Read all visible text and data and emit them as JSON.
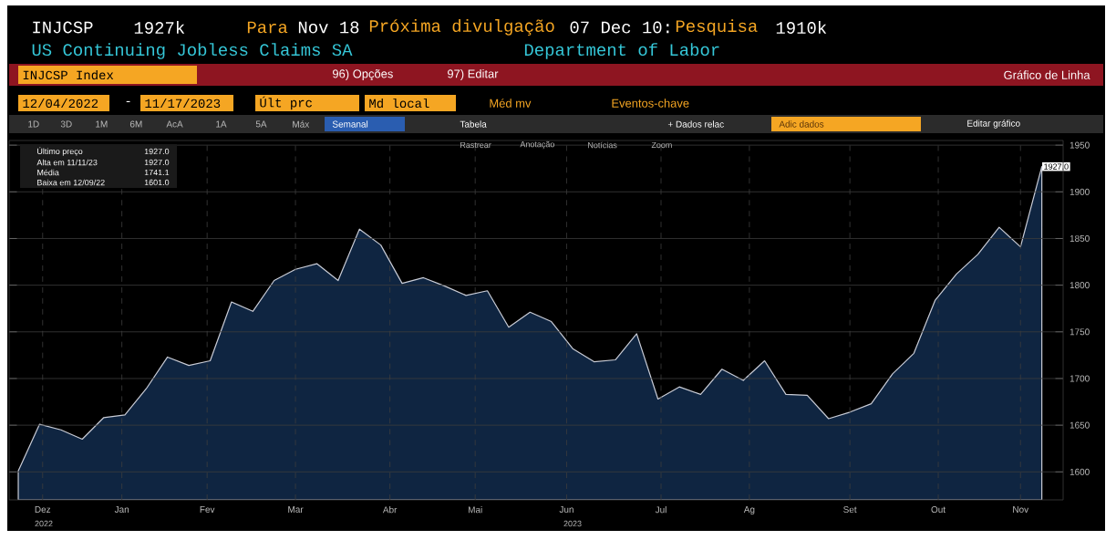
{
  "chart_data": {
    "type": "area",
    "title": "US Continuing Jobless Claims SA",
    "subtitle": "Department of Labor",
    "x": [
      "2022-12-10",
      "2022-12-17",
      "2022-12-24",
      "2022-12-31",
      "2023-01-07",
      "2023-01-14",
      "2023-01-21",
      "2023-01-28",
      "2023-02-04",
      "2023-02-11",
      "2023-02-18",
      "2023-02-25",
      "2023-03-04",
      "2023-03-11",
      "2023-03-18",
      "2023-03-25",
      "2023-04-01",
      "2023-04-08",
      "2023-04-15",
      "2023-04-22",
      "2023-04-29",
      "2023-05-06",
      "2023-05-13",
      "2023-05-20",
      "2023-05-27",
      "2023-06-03",
      "2023-06-10",
      "2023-06-17",
      "2023-06-24",
      "2023-07-01",
      "2023-07-08",
      "2023-07-15",
      "2023-07-22",
      "2023-07-29",
      "2023-08-05",
      "2023-08-12",
      "2023-08-19",
      "2023-08-26",
      "2023-09-02",
      "2023-09-09",
      "2023-09-16",
      "2023-09-23",
      "2023-09-30",
      "2023-10-07",
      "2023-10-14",
      "2023-10-21",
      "2023-10-28",
      "2023-11-04",
      "2023-11-11"
    ],
    "values": [
      1601,
      1651,
      1645,
      1635,
      1658,
      1661,
      1689,
      1723,
      1714,
      1719,
      1782,
      1772,
      1805,
      1817,
      1823,
      1805,
      1860,
      1843,
      1802,
      1808,
      1799,
      1789,
      1794,
      1755,
      1771,
      1761,
      1732,
      1718,
      1720,
      1748,
      1678,
      1691,
      1683,
      1710,
      1698,
      1719,
      1683,
      1682,
      1657,
      1664,
      1673,
      1705,
      1727,
      1784,
      1812,
      1833,
      1862,
      1841,
      1927
    ],
    "value_labels": [
      null,
      null,
      null,
      null,
      null,
      null,
      null,
      null,
      null,
      null,
      null,
      null,
      null,
      null,
      null,
      null,
      null,
      null,
      null,
      null,
      null,
      null,
      null,
      null,
      null,
      null,
      null,
      null,
      null,
      null,
      null,
      null,
      null,
      null,
      null,
      null,
      null,
      null,
      null,
      null,
      null,
      null,
      null,
      null,
      null,
      null,
      null,
      null,
      "1927.0"
    ],
    "color": "#0f2541",
    "xlim": [
      "2022-12-07",
      "2023-11-18"
    ],
    "xticks": [
      {
        "value": "2022-12-18",
        "label": "Dez"
      },
      {
        "value": "2023-01-13",
        "label": "Jan"
      },
      {
        "value": "2023-02-10",
        "label": "Fev"
      },
      {
        "value": "2023-03-11",
        "label": "Mar"
      },
      {
        "value": "2023-04-11",
        "label": "Abr"
      },
      {
        "value": "2023-05-09",
        "label": "Mai"
      },
      {
        "value": "2023-06-08",
        "label": "Jun"
      },
      {
        "value": "2023-07-09",
        "label": "Jul"
      },
      {
        "value": "2023-08-07",
        "label": "Ag"
      },
      {
        "value": "2023-09-09",
        "label": "Set"
      },
      {
        "value": "2023-10-08",
        "label": "Out"
      },
      {
        "value": "2023-11-04",
        "label": "Nov"
      }
    ],
    "ylim": [
      1570,
      1955
    ],
    "yticks": [
      1600,
      1650,
      1700,
      1750,
      1800,
      1850,
      1900,
      1950
    ],
    "grid": true,
    "annotations": [
      "INJCSP",
      "1927k",
      "Para",
      "Nov 18",
      "Próxima divulgação",
      "07 Dec 10:",
      "Pesquisa",
      "1910k",
      "INJCSP Index",
      "96) Opções",
      "97) Editar",
      "Gráfico de Linha",
      "12/04/2022",
      "-",
      "11/17/2023",
      "Últ prc",
      "Md local",
      "Méd mv",
      "Eventos-chave",
      "1D",
      "3D",
      "1M",
      "6M",
      "AcA",
      "1A",
      "5A",
      "Máx",
      "Semanal",
      "Tabela",
      "+ Dados relac",
      "Adic dados",
      "Editar gráfico",
      "Rastrear",
      "Anotação",
      "Notícias",
      "Zoom",
      "Último preço",
      "1927.0",
      "Alta em 11/11/23",
      "1927.0",
      "Média",
      "1741.1",
      "Baixa em 12/09/22",
      "1601.0",
      "2022",
      "2023"
    ]
  }
}
